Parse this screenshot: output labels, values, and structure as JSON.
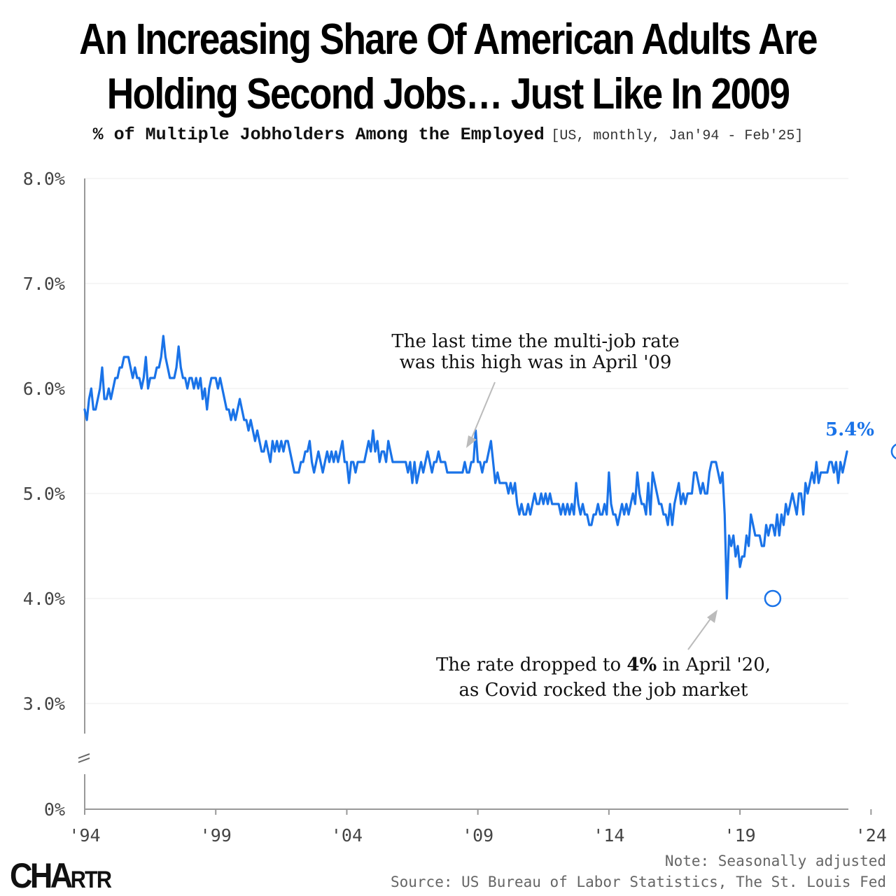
{
  "title_line1": "An Increasing Share Of American Adults Are",
  "title_line2": "Holding Second Jobs… Just Like In 2009",
  "subtitle_main": "% of Multiple Jobholders Among the Employed",
  "subtitle_meta": "[US, monthly, Jan'94 - Feb'25]",
  "note": "Note: Seasonally adjusted",
  "source": "Source: US Bureau of Labor Statistics, The St. Louis Fed",
  "logo_main": "CHA",
  "logo_small": "RTR",
  "colors": {
    "line": "#1a73e8",
    "grid": "#eeeeee",
    "axis": "#999999",
    "arrow": "#bbbbbb"
  },
  "annotations": {
    "a2009_line1": "The last time the multi-job rate",
    "a2009_line2": "was this high was in April '09",
    "a2020_pre": "The rate dropped to ",
    "a2020_bold": "4%",
    "a2020_post": " in April '20,",
    "a2020_line2": "as Covid rocked the job market",
    "end_label": "5.4%"
  },
  "chart_data": {
    "type": "line",
    "title": "An Increasing Share Of American Adults Are Holding Second Jobs… Just Like In 2009",
    "subtitle": "% of Multiple Jobholders Among the Employed [US, monthly, Jan'94 - Feb'25]",
    "xlabel": "",
    "ylabel": "",
    "x_start": "1994-01",
    "x_end": "2025-02",
    "y_ticks": [
      "8.0%",
      "7.0%",
      "6.0%",
      "5.0%",
      "4.0%",
      "3.0%",
      "0%"
    ],
    "y_tick_values": [
      8,
      7,
      6,
      5,
      4,
      3,
      0
    ],
    "x_ticks": [
      "'94",
      "'99",
      "'04",
      "'09",
      "'14",
      "'19",
      "'24"
    ],
    "x_tick_years": [
      1994,
      1999,
      2004,
      2009,
      2014,
      2019,
      2024
    ],
    "ylim": [
      0,
      8
    ],
    "axis_break": "between 0% and 3.0%",
    "grid": true,
    "highlighted_points": [
      {
        "date": "2020-04",
        "value": 4.0
      },
      {
        "date": "2025-02",
        "value": 5.4
      }
    ],
    "series": [
      {
        "values": [
          5.8,
          5.7,
          5.9,
          6.0,
          5.8,
          5.8,
          5.9,
          6.0,
          6.2,
          5.9,
          5.9,
          6.0,
          5.9,
          6.0,
          6.1,
          6.1,
          6.2,
          6.2,
          6.3,
          6.3,
          6.3,
          6.2,
          6.1,
          6.2,
          6.1,
          6.1,
          6.0,
          6.1,
          6.3,
          6.0,
          6.1,
          6.1,
          6.1,
          6.2,
          6.2,
          6.3,
          6.5,
          6.3,
          6.2,
          6.1,
          6.1,
          6.1,
          6.2,
          6.4,
          6.2,
          6.1,
          6.1,
          6.0,
          6.1,
          6.1,
          6.0,
          6.1,
          6.0,
          6.1,
          5.9,
          6.0,
          5.8,
          6.0,
          6.1,
          6.1,
          6.1,
          6.0,
          6.1,
          6.0,
          5.9,
          5.8,
          5.8,
          5.7,
          5.8,
          5.7,
          5.8,
          5.9,
          5.8,
          5.7,
          5.7,
          5.6,
          5.7,
          5.6,
          5.5,
          5.6,
          5.5,
          5.4,
          5.4,
          5.5,
          5.4,
          5.3,
          5.5,
          5.4,
          5.5,
          5.4,
          5.5,
          5.4,
          5.5,
          5.5,
          5.4,
          5.3,
          5.2,
          5.2,
          5.2,
          5.3,
          5.3,
          5.4,
          5.4,
          5.5,
          5.3,
          5.2,
          5.3,
          5.4,
          5.3,
          5.2,
          5.3,
          5.4,
          5.3,
          5.4,
          5.3,
          5.4,
          5.3,
          5.4,
          5.5,
          5.3,
          5.3,
          5.1,
          5.3,
          5.3,
          5.2,
          5.3,
          5.3,
          5.3,
          5.3,
          5.4,
          5.5,
          5.4,
          5.6,
          5.4,
          5.5,
          5.3,
          5.4,
          5.4,
          5.3,
          5.5,
          5.4,
          5.3,
          5.3,
          5.3,
          5.3,
          5.3,
          5.3,
          5.3,
          5.2,
          5.3,
          5.1,
          5.3,
          5.1,
          5.2,
          5.3,
          5.2,
          5.3,
          5.4,
          5.3,
          5.2,
          5.3,
          5.3,
          5.4,
          5.3,
          5.3,
          5.3,
          5.2,
          5.2,
          5.2,
          5.2,
          5.2,
          5.2,
          5.2,
          5.2,
          5.3,
          5.2,
          5.2,
          5.3,
          5.3,
          5.6,
          5.3,
          5.3,
          5.2,
          5.3,
          5.3,
          5.4,
          5.5,
          5.3,
          5.1,
          5.2,
          5.1,
          5.1,
          5.1,
          5.1,
          5.0,
          5.1,
          5.0,
          5.1,
          4.9,
          4.8,
          4.9,
          4.8,
          4.8,
          4.9,
          4.8,
          4.9,
          5.0,
          4.9,
          4.9,
          5.0,
          4.9,
          5.0,
          4.9,
          5.0,
          4.9,
          4.9,
          4.9,
          4.9,
          4.8,
          4.9,
          4.8,
          4.9,
          4.8,
          4.9,
          4.8,
          5.1,
          4.9,
          4.8,
          4.9,
          4.8,
          4.8,
          4.7,
          4.7,
          4.8,
          4.8,
          4.9,
          4.8,
          4.8,
          4.9,
          4.8,
          5.2,
          4.9,
          4.8,
          4.8,
          4.7,
          4.8,
          4.9,
          4.8,
          4.9,
          4.8,
          4.9,
          5.0,
          4.9,
          5.2,
          5.0,
          4.9,
          4.9,
          4.8,
          5.1,
          4.8,
          5.2,
          5.1,
          5.0,
          4.9,
          4.9,
          4.8,
          4.8,
          4.7,
          4.9,
          4.7,
          4.9,
          5.0,
          5.1,
          4.9,
          5.0,
          4.9,
          5.0,
          5.0,
          5.0,
          5.2,
          5.2,
          5.1,
          5.0,
          5.1,
          5.0,
          5.0,
          5.2,
          5.3,
          5.3,
          5.3,
          5.2,
          5.1,
          5.2,
          4.8,
          4.0,
          4.6,
          4.5,
          4.6,
          4.4,
          4.5,
          4.3,
          4.4,
          4.4,
          4.6,
          4.5,
          4.8,
          4.7,
          4.6,
          4.6,
          4.6,
          4.5,
          4.5,
          4.7,
          4.6,
          4.7,
          4.7,
          4.6,
          4.8,
          4.6,
          4.8,
          4.7,
          4.9,
          4.8,
          4.9,
          5.0,
          4.9,
          4.8,
          5.0,
          5.0,
          4.8,
          5.1,
          5.0,
          5.1,
          5.2,
          5.1,
          5.3,
          5.1,
          5.2,
          5.2,
          5.2,
          5.2,
          5.3,
          5.3,
          5.2,
          5.3,
          5.1,
          5.3,
          5.2,
          5.3,
          5.4
        ]
      }
    ]
  }
}
